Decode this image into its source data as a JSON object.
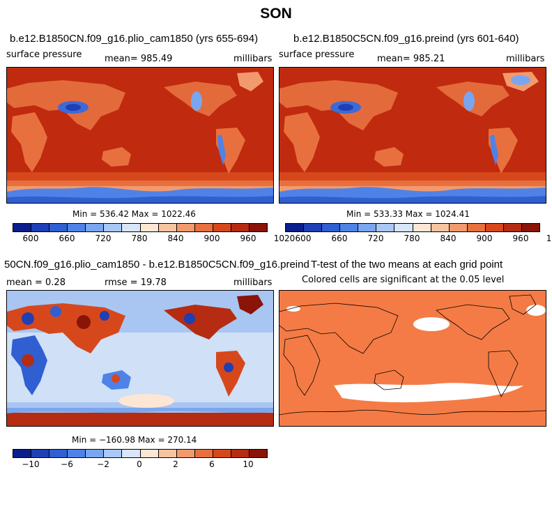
{
  "title": "SON",
  "panels": [
    {
      "title": "b.e12.B1850CN.f09_g16.plio_cam1850 (yrs 655-694)",
      "left_label": "surface pressure",
      "center_label": "mean= 985.49",
      "right_label": "millibars",
      "minmax": "Min = 536.42 Max = 1022.46"
    },
    {
      "title": "b.e12.B1850C5CN.f09_g16.preind (yrs 601-640)",
      "left_label": "surface pressure",
      "center_label": "mean= 985.21",
      "right_label": "millibars",
      "minmax": "Min = 533.33 Max = 1024.41"
    },
    {
      "title": "50CN.f09_g16.plio_cam1850 - b.e12.B1850C5CN.f09_g16.preind",
      "left_label": "mean =    0.28",
      "center_label": "rmse =   19.78",
      "right_label": "millibars",
      "minmax": "Min = −160.98 Max = 270.14"
    },
    {
      "title": "T-test of the two means at each grid point",
      "subtitle": "Colored cells are significant at the 0.05 level"
    }
  ],
  "colorbars": {
    "absolute": {
      "colors": [
        "#0a1e8c",
        "#1f3fb4",
        "#2f5fd0",
        "#4f82e6",
        "#7aa6f0",
        "#a9c8f5",
        "#d7e6f8",
        "#fde6d4",
        "#f7c4a2",
        "#f29a6e",
        "#e8703f",
        "#d6481c",
        "#b52c12",
        "#8a1408"
      ],
      "ticks": [
        "600",
        "660",
        "720",
        "780",
        "840",
        "900",
        "960",
        "1020"
      ]
    },
    "difference": {
      "colors": [
        "#0a1e8c",
        "#1f3fb4",
        "#2f5fd0",
        "#4f82e6",
        "#7aa6f0",
        "#a9c8f5",
        "#d7e6f8",
        "#fde6d4",
        "#f7c4a2",
        "#f29a6e",
        "#e8703f",
        "#d6481c",
        "#b52c12",
        "#8a1408"
      ],
      "ticks": [
        "−10",
        "−6",
        "−2",
        "0",
        "2",
        "6",
        "10"
      ]
    }
  },
  "map_colors": {
    "ocean_high": "#c02a0e",
    "land_mid": "#e36a3b",
    "low": "#3d6ad8",
    "diff_ocean": "#a9c6f2",
    "diff_ocean_light": "#cfe0f7",
    "ttest_sig": "#f47b45",
    "ttest_nonsig": "#ffffff"
  }
}
